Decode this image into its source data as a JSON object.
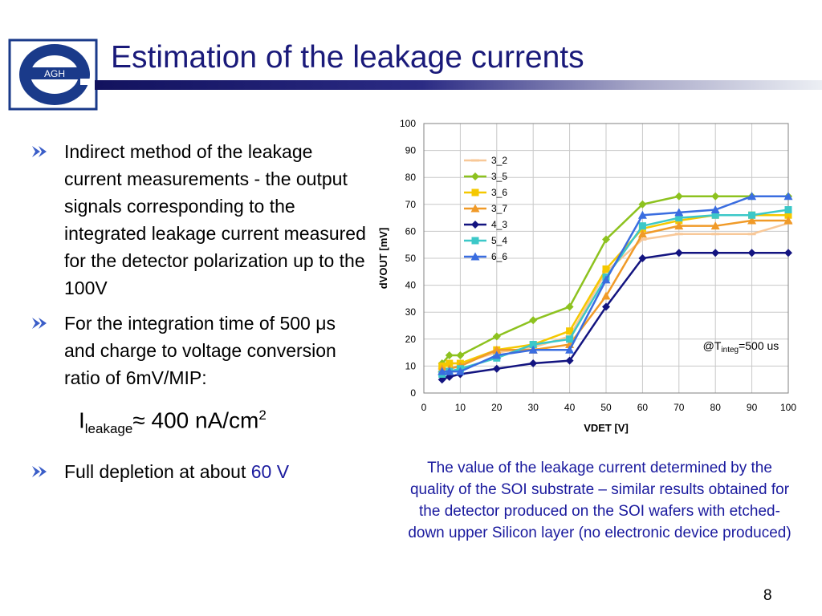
{
  "slide": {
    "title": "Estimation of the leakage currents",
    "logo_text": "AGH",
    "page_number": "8",
    "caption": "The value of the leakage current determined by the quality of the SOI substrate – similar results obtained for the detector produced on the SOI wafers with etched-down upper Silicon layer (no electronic device produced)",
    "bullets": [
      "Indirect method of the leakage current measurements - the output signals corresponding to the integrated leakage current measured for the detector polarization up to the 100V",
      "For the integration time of 500 μs and charge to voltage conversion ratio of 6mV/MIP:"
    ],
    "formula": {
      "symbol": "I",
      "subscript": "leakage",
      "approx": "≈",
      "value": " 400 nA/cm",
      "superscript": "2"
    },
    "bullet3": {
      "text": "Full depletion at about ",
      "highlight": "60 V"
    },
    "colors": {
      "title": "#1a1a7a",
      "accent": "#1a1a9e"
    }
  },
  "chart_data": {
    "type": "line",
    "xlabel": "VDET  [V]",
    "ylabel": "dVOUT  [mV]",
    "xlim": [
      0,
      100
    ],
    "ylim": [
      0,
      100
    ],
    "x_ticks": [
      0,
      10,
      20,
      30,
      40,
      50,
      60,
      70,
      80,
      90,
      100
    ],
    "y_ticks": [
      0,
      10,
      20,
      30,
      40,
      50,
      60,
      70,
      80,
      90,
      100
    ],
    "grid": true,
    "legend_position": "top-left",
    "annotation": {
      "prefix": "@T",
      "subscript": "integ",
      "suffix": "=500 us"
    },
    "x": [
      5,
      7,
      10,
      20,
      30,
      40,
      50,
      60,
      70,
      80,
      90,
      100
    ],
    "series": [
      {
        "name": "3_2",
        "color": "#f8c898",
        "marker": "dash",
        "values": [
          9,
          11,
          11,
          15,
          17,
          21,
          45,
          57,
          59,
          59,
          59,
          63
        ]
      },
      {
        "name": "3_5",
        "color": "#8dc21f",
        "marker": "diamond",
        "values": [
          11,
          14,
          14,
          21,
          27,
          32,
          57,
          70,
          73,
          73,
          73,
          73
        ]
      },
      {
        "name": "3_6",
        "color": "#f5c800",
        "marker": "square",
        "values": [
          10,
          11,
          11,
          16,
          18,
          23,
          46,
          61,
          64,
          66,
          66,
          66
        ]
      },
      {
        "name": "3_7",
        "color": "#f09a28",
        "marker": "triangle",
        "values": [
          9,
          9,
          10,
          16,
          16,
          18,
          36,
          59,
          62,
          62,
          64,
          64
        ]
      },
      {
        "name": "4_3",
        "color": "#131480",
        "marker": "diamond",
        "values": [
          5,
          6,
          7,
          9,
          11,
          12,
          32,
          50,
          52,
          52,
          52,
          52
        ]
      },
      {
        "name": "5_4",
        "color": "#3cc8c8",
        "marker": "square",
        "values": [
          7,
          8,
          9,
          13,
          18,
          20,
          43,
          62,
          65,
          66,
          66,
          68
        ]
      },
      {
        "name": "6_6",
        "color": "#3a6de0",
        "marker": "triangle",
        "values": [
          8,
          8,
          8,
          14,
          16,
          16,
          42,
          66,
          67,
          68,
          73,
          73
        ]
      }
    ]
  }
}
